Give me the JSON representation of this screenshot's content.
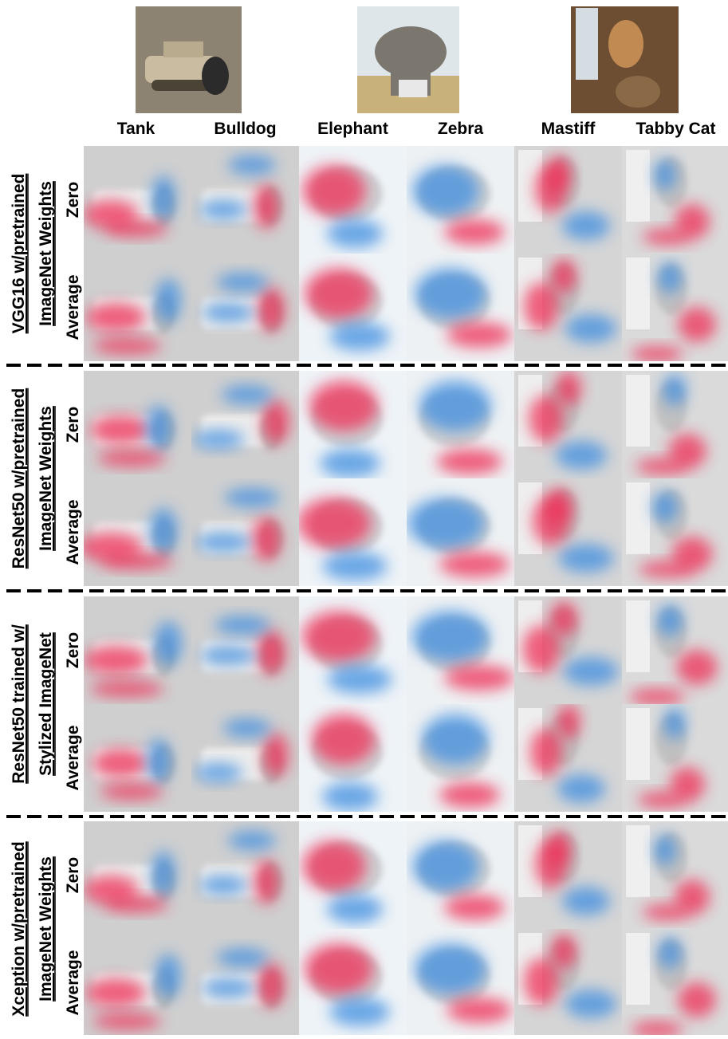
{
  "columns": [
    "Tank",
    "Bulldog",
    "Elephant",
    "Zebra",
    "Mastiff",
    "Tabby Cat"
  ],
  "groups": [
    {
      "label_lines": [
        "VGG16 w/pretrained",
        "ImageNet Weights"
      ],
      "rows": [
        "Zero",
        "Average"
      ]
    },
    {
      "label_lines": [
        "ResNet50 w/pretrained",
        "ImageNet Weights"
      ],
      "rows": [
        "Zero",
        "Average"
      ]
    },
    {
      "label_lines": [
        "ResNet50 trained w/",
        "Stylized ImageNet"
      ],
      "rows": [
        "Zero",
        "Average"
      ]
    },
    {
      "label_lines": [
        "Xception w/pretrained",
        "ImageNet Weights"
      ],
      "rows": [
        "Zero",
        "Average"
      ]
    }
  ]
}
